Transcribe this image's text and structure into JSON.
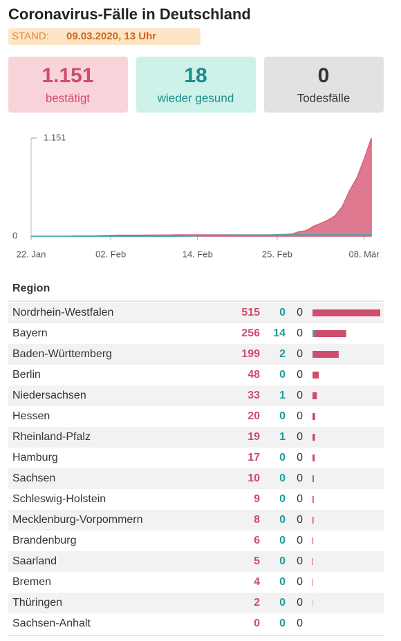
{
  "header": {
    "title": "Coronavirus-Fälle in Deutschland",
    "stand_label": "STAND:",
    "stand_value": "09.03.2020, 13 Uhr"
  },
  "stats": [
    {
      "value": "1.151",
      "label": "bestätigt"
    },
    {
      "value": "18",
      "label": "wieder gesund"
    },
    {
      "value": "0",
      "label": "Todesfälle"
    }
  ],
  "chart_data": {
    "type": "area",
    "categories": [
      "22. Jan",
      null,
      null,
      null,
      null,
      null,
      null,
      null,
      null,
      null,
      null,
      "02. Feb",
      null,
      null,
      null,
      null,
      null,
      null,
      null,
      null,
      null,
      null,
      null,
      "14. Feb",
      null,
      null,
      null,
      null,
      null,
      null,
      null,
      null,
      null,
      null,
      "25. Feb",
      null,
      null,
      null,
      null,
      null,
      null,
      null,
      null,
      null,
      null,
      null,
      "08. Mär",
      null
    ],
    "series": [
      {
        "color": "#d9617c",
        "values": [
          0,
          0,
          0,
          0,
          0,
          0,
          4,
          4,
          4,
          5,
          8,
          10,
          12,
          12,
          12,
          12,
          13,
          13,
          14,
          14,
          16,
          16,
          16,
          16,
          16,
          16,
          16,
          16,
          16,
          16,
          16,
          16,
          16,
          16,
          18,
          21,
          26,
          53,
          66,
          117,
          150,
          188,
          240,
          349,
          534,
          684,
          902,
          1151
        ]
      },
      {
        "color": "#27b3b3",
        "values": [
          0,
          0,
          0,
          0,
          0,
          0,
          0,
          0,
          0,
          0,
          0,
          0,
          0,
          0,
          0,
          0,
          0,
          0,
          0,
          0,
          0,
          1,
          2,
          2,
          12,
          12,
          12,
          12,
          14,
          14,
          14,
          14,
          14,
          14,
          16,
          16,
          16,
          16,
          16,
          16,
          16,
          16,
          16,
          16,
          16,
          16,
          16,
          18
        ]
      }
    ],
    "ylim": [
      0,
      1151
    ],
    "yticks": [
      0,
      {
        "value": 1151,
        "label": "1.151"
      }
    ]
  },
  "table": {
    "header": "Region",
    "rows": [
      [
        "Nordrhein-Westfalen",
        515,
        0,
        0
      ],
      [
        "Bayern",
        256,
        14,
        0
      ],
      [
        "Baden-Württemberg",
        199,
        2,
        0
      ],
      [
        "Berlin",
        48,
        0,
        0
      ],
      [
        "Niedersachsen",
        33,
        1,
        0
      ],
      [
        "Hessen",
        20,
        0,
        0
      ],
      [
        "Rheinland-Pfalz",
        19,
        1,
        0
      ],
      [
        "Hamburg",
        17,
        0,
        0
      ],
      [
        "Sachsen",
        10,
        0,
        0
      ],
      [
        "Schleswig-Holstein",
        9,
        0,
        0
      ],
      [
        "Mecklenburg-Vorpommern",
        8,
        0,
        0
      ],
      [
        "Brandenburg",
        6,
        0,
        0
      ],
      [
        "Saarland",
        5,
        0,
        0
      ],
      [
        "Bremen",
        4,
        0,
        0
      ],
      [
        "Thüringen",
        2,
        0,
        0
      ],
      [
        "Sachsen-Anhalt",
        0,
        0,
        0
      ]
    ]
  }
}
